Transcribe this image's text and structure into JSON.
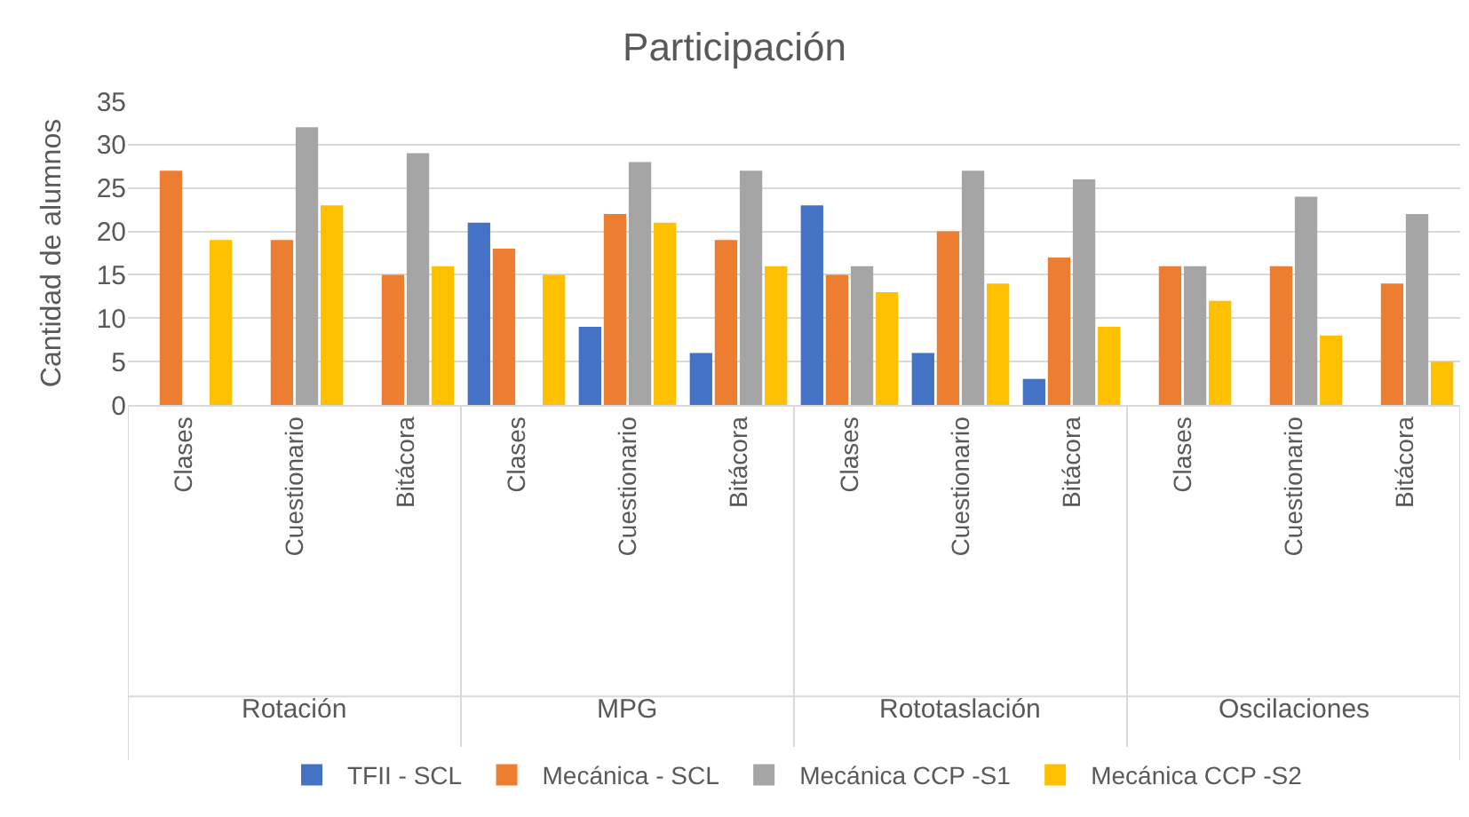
{
  "chart_data": {
    "type": "bar",
    "title": "Participación",
    "ylabel": "Cantidad de alumnos",
    "categories": [
      "Clases",
      "Cuestionario",
      "Bitácora",
      "Clases",
      "Cuestionario",
      "Bitácora",
      "Clases",
      "Cuestionario",
      "Bitácora",
      "Clases",
      "Cuestionario",
      "Bitácora"
    ],
    "annotations": [
      "Rotación",
      "MPG",
      "Rototaslación",
      "Oscilaciones"
    ],
    "series": [
      {
        "name": "TFII - SCL",
        "color": "#4472c4",
        "values": [
          null,
          null,
          null,
          21,
          9,
          6,
          23,
          6,
          3,
          null,
          null,
          null
        ]
      },
      {
        "name": "Mecánica - SCL",
        "color": "#ed7d31",
        "values": [
          27,
          19,
          15,
          18,
          22,
          19,
          15,
          20,
          17,
          16,
          16,
          14
        ]
      },
      {
        "name": "Mecánica CCP -S1",
        "color": "#a5a5a5",
        "values": [
          null,
          32,
          29,
          null,
          28,
          27,
          16,
          27,
          26,
          16,
          24,
          22
        ]
      },
      {
        "name": "Mecánica CCP -S2",
        "color": "#ffc000",
        "values": [
          19,
          23,
          16,
          15,
          21,
          16,
          13,
          14,
          9,
          12,
          8,
          5
        ]
      }
    ],
    "ylim": [
      0,
      35
    ],
    "yticks": [
      0,
      5,
      10,
      15,
      20,
      25,
      30,
      35
    ],
    "grid": "y",
    "legend": "bottom"
  }
}
